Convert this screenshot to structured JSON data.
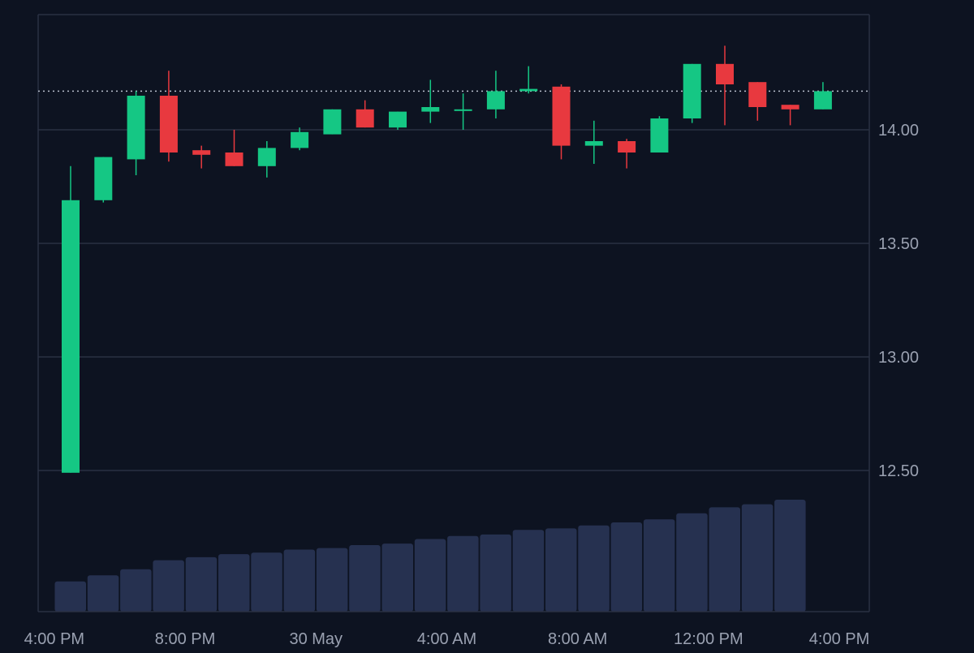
{
  "chart_data": {
    "type": "candlestick",
    "title": "",
    "xlabel": "",
    "ylabel": "",
    "price_axis": {
      "ticks": [
        12.5,
        13.0,
        13.5,
        14.0
      ],
      "tick_labels": [
        "12.50",
        "13.00",
        "13.50",
        "14.00"
      ],
      "range": [
        12.04,
        14.51
      ],
      "position": "right"
    },
    "time_axis": {
      "tick_labels": [
        "4:00 PM",
        "8:00 PM",
        "30 May",
        "4:00 AM",
        "8:00 AM",
        "12:00 PM",
        "4:00 PM"
      ],
      "tick_index": [
        -0.5,
        3.5,
        7.5,
        11.5,
        15.5,
        19.5,
        23.5
      ]
    },
    "grid": true,
    "last_price": 14.17,
    "candles": [
      {
        "open": 12.49,
        "high": 13.84,
        "low": 12.49,
        "close": 13.69
      },
      {
        "open": 13.69,
        "high": 13.88,
        "low": 13.68,
        "close": 13.88
      },
      {
        "open": 13.87,
        "high": 14.17,
        "low": 13.8,
        "close": 14.15
      },
      {
        "open": 14.15,
        "high": 14.26,
        "low": 13.86,
        "close": 13.9
      },
      {
        "open": 13.91,
        "high": 13.93,
        "low": 13.83,
        "close": 13.89
      },
      {
        "open": 13.9,
        "high": 14.0,
        "low": 13.84,
        "close": 13.84
      },
      {
        "open": 13.84,
        "high": 13.95,
        "low": 13.79,
        "close": 13.92
      },
      {
        "open": 13.92,
        "high": 14.01,
        "low": 13.91,
        "close": 13.99
      },
      {
        "open": 13.98,
        "high": 14.09,
        "low": 13.98,
        "close": 14.09
      },
      {
        "open": 14.09,
        "high": 14.13,
        "low": 14.01,
        "close": 14.01
      },
      {
        "open": 14.01,
        "high": 14.08,
        "low": 14.0,
        "close": 14.08
      },
      {
        "open": 14.08,
        "high": 14.22,
        "low": 14.03,
        "close": 14.1
      },
      {
        "open": 14.09,
        "high": 14.16,
        "low": 14.0,
        "close": 14.09
      },
      {
        "open": 14.09,
        "high": 14.26,
        "low": 14.05,
        "close": 14.17
      },
      {
        "open": 14.17,
        "high": 14.28,
        "low": 14.16,
        "close": 14.18
      },
      {
        "open": 14.19,
        "high": 14.2,
        "low": 13.87,
        "close": 13.93
      },
      {
        "open": 13.93,
        "high": 14.04,
        "low": 13.85,
        "close": 13.95
      },
      {
        "open": 13.95,
        "high": 13.96,
        "low": 13.83,
        "close": 13.9
      },
      {
        "open": 13.9,
        "high": 14.06,
        "low": 13.9,
        "close": 14.05
      },
      {
        "open": 14.05,
        "high": 14.29,
        "low": 14.03,
        "close": 14.29
      },
      {
        "open": 14.29,
        "high": 14.37,
        "low": 14.02,
        "close": 14.2
      },
      {
        "open": 14.21,
        "high": 14.21,
        "low": 14.04,
        "close": 14.1
      },
      {
        "open": 14.11,
        "high": 14.11,
        "low": 14.02,
        "close": 14.09
      },
      {
        "open": 14.09,
        "high": 14.21,
        "low": 14.09,
        "close": 14.17
      }
    ],
    "volume": [
      100,
      120,
      140,
      170,
      180,
      190,
      195,
      205,
      210,
      220,
      225,
      240,
      250,
      255,
      270,
      275,
      285,
      295,
      305,
      325,
      345,
      355,
      370
    ],
    "colors": {
      "up": "#15c784",
      "down": "#e8393f",
      "volume": "#263150",
      "grid": "#2a3142",
      "axis_text": "#9aa1b1",
      "background": "#0d1321"
    }
  }
}
